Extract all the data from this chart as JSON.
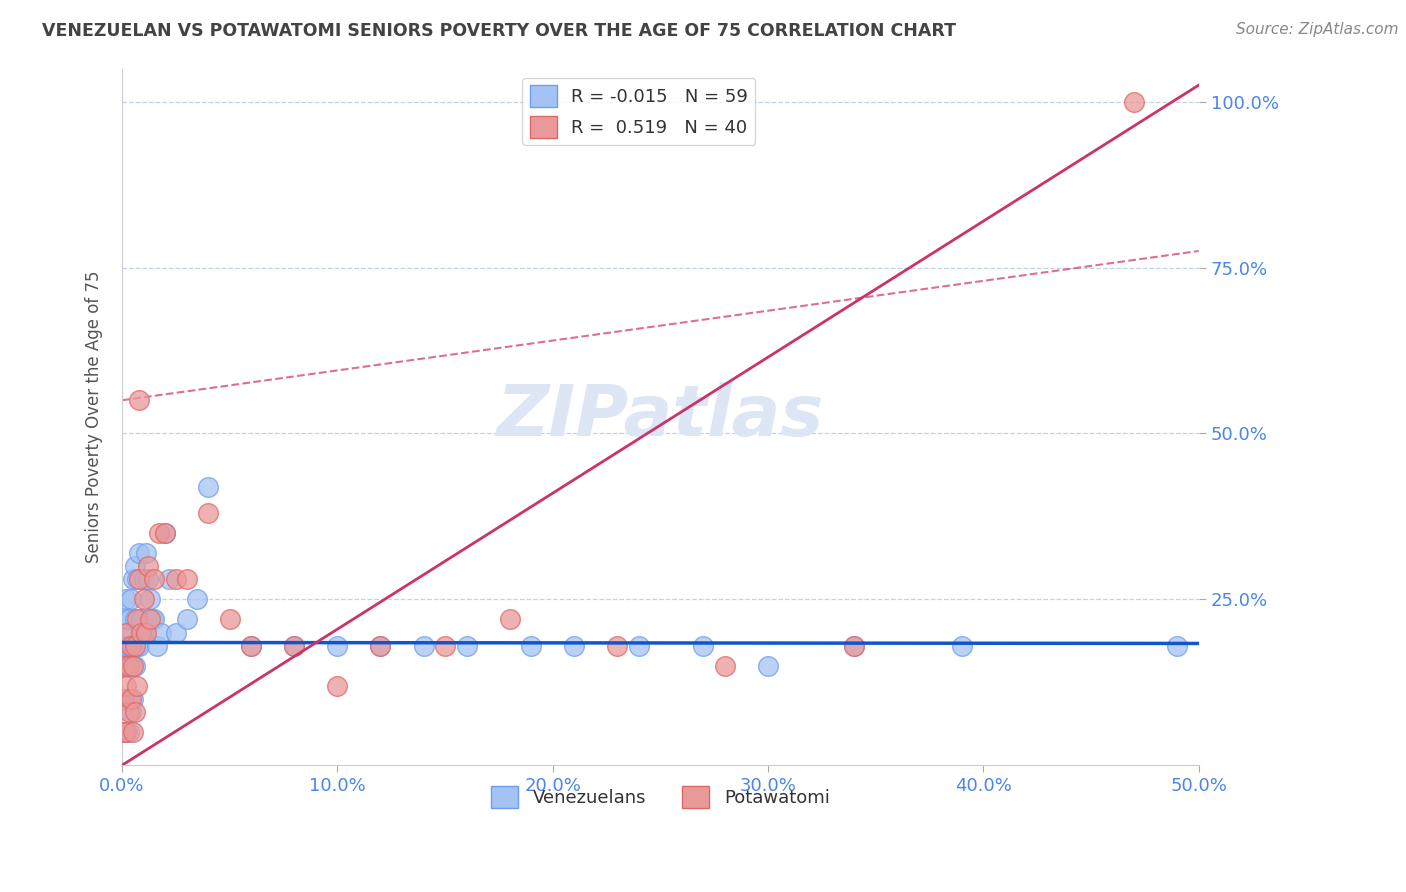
{
  "title": "VENEZUELAN VS POTAWATOMI SENIORS POVERTY OVER THE AGE OF 75 CORRELATION CHART",
  "source": "Source: ZipAtlas.com",
  "ylabel": "Seniors Poverty Over the Age of 75",
  "xlim": [
    0.0,
    0.5
  ],
  "ylim": [
    0.0,
    1.05
  ],
  "xticks": [
    0.0,
    0.1,
    0.2,
    0.3,
    0.4,
    0.5
  ],
  "yticks": [
    0.25,
    0.5,
    0.75,
    1.0
  ],
  "ytick_labels": [
    "25.0%",
    "50.0%",
    "75.0%",
    "100.0%"
  ],
  "xtick_labels": [
    "0.0%",
    "10.0%",
    "20.0%",
    "30.0%",
    "40.0%",
    "50.0%"
  ],
  "blue_R": -0.015,
  "blue_N": 59,
  "pink_R": 0.519,
  "pink_N": 40,
  "blue_color": "#a4c2f4",
  "pink_color": "#ea9999",
  "blue_edge_color": "#6d9eeb",
  "pink_edge_color": "#e06666",
  "blue_line_color": "#1155cc",
  "pink_line_color": "#cc3366",
  "grid_color": "#b4c7e7",
  "title_color": "#434343",
  "axis_label_color": "#4a86e8",
  "watermark_color": "#dce6f5",
  "blue_line_y0": 0.185,
  "blue_line_slope": -0.003,
  "pink_line_y0": 0.0,
  "pink_line_slope": 2.05,
  "dashed_line_y0": 0.55,
  "dashed_line_slope": 0.45,
  "venezuelan_x": [
    0.001,
    0.001,
    0.001,
    0.001,
    0.001,
    0.002,
    0.002,
    0.002,
    0.002,
    0.002,
    0.002,
    0.003,
    0.003,
    0.003,
    0.003,
    0.004,
    0.004,
    0.004,
    0.004,
    0.005,
    0.005,
    0.005,
    0.006,
    0.006,
    0.006,
    0.007,
    0.007,
    0.008,
    0.008,
    0.009,
    0.01,
    0.01,
    0.011,
    0.012,
    0.013,
    0.014,
    0.015,
    0.016,
    0.018,
    0.02,
    0.022,
    0.025,
    0.03,
    0.035,
    0.04,
    0.06,
    0.08,
    0.1,
    0.12,
    0.14,
    0.16,
    0.19,
    0.21,
    0.24,
    0.27,
    0.3,
    0.34,
    0.39,
    0.49
  ],
  "venezuelan_y": [
    0.05,
    0.1,
    0.15,
    0.18,
    0.2,
    0.05,
    0.1,
    0.15,
    0.18,
    0.22,
    0.25,
    0.05,
    0.1,
    0.18,
    0.22,
    0.08,
    0.15,
    0.18,
    0.25,
    0.1,
    0.18,
    0.28,
    0.15,
    0.22,
    0.3,
    0.18,
    0.28,
    0.18,
    0.32,
    0.22,
    0.2,
    0.28,
    0.32,
    0.28,
    0.25,
    0.22,
    0.22,
    0.18,
    0.2,
    0.35,
    0.28,
    0.2,
    0.22,
    0.25,
    0.42,
    0.18,
    0.18,
    0.18,
    0.18,
    0.18,
    0.18,
    0.18,
    0.18,
    0.18,
    0.18,
    0.15,
    0.18,
    0.18,
    0.18
  ],
  "potawatomi_x": [
    0.001,
    0.001,
    0.001,
    0.002,
    0.002,
    0.002,
    0.003,
    0.003,
    0.004,
    0.004,
    0.005,
    0.005,
    0.006,
    0.006,
    0.007,
    0.007,
    0.008,
    0.008,
    0.009,
    0.01,
    0.011,
    0.012,
    0.013,
    0.015,
    0.017,
    0.02,
    0.025,
    0.03,
    0.04,
    0.05,
    0.06,
    0.08,
    0.1,
    0.12,
    0.15,
    0.18,
    0.23,
    0.28,
    0.34,
    0.47
  ],
  "potawatomi_y": [
    0.05,
    0.1,
    0.15,
    0.05,
    0.12,
    0.2,
    0.08,
    0.15,
    0.1,
    0.18,
    0.05,
    0.15,
    0.08,
    0.18,
    0.12,
    0.22,
    0.28,
    0.55,
    0.2,
    0.25,
    0.2,
    0.3,
    0.22,
    0.28,
    0.35,
    0.35,
    0.28,
    0.28,
    0.38,
    0.22,
    0.18,
    0.18,
    0.12,
    0.18,
    0.18,
    0.22,
    0.18,
    0.15,
    0.18,
    1.0
  ]
}
